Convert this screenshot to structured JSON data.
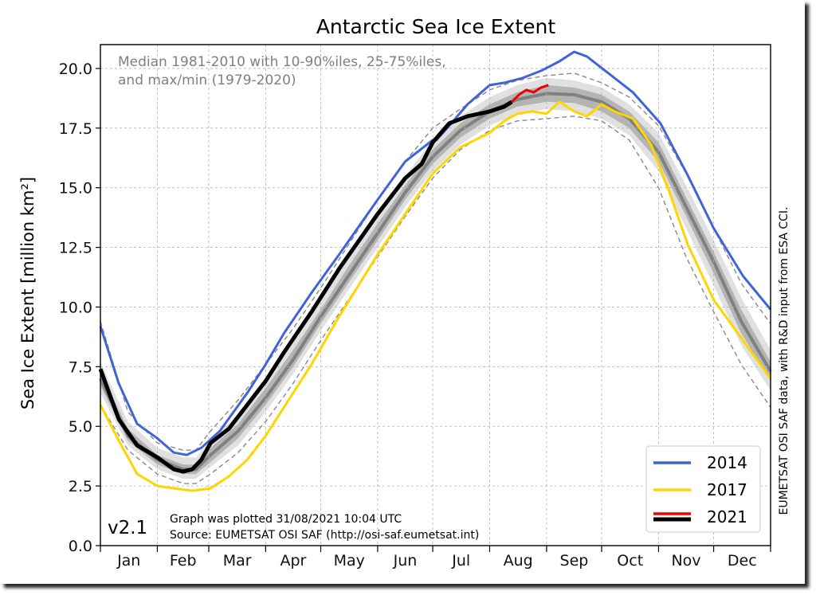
{
  "chart_data": {
    "type": "line",
    "title": "Antarctic Sea Ice Extent",
    "ylabel": "Sea Ice Extent [million km²]",
    "ylim": [
      0,
      21
    ],
    "yticks": [
      "0.0",
      "2.5",
      "5.0",
      "7.5",
      "10.0",
      "12.5",
      "15.0",
      "17.5",
      "20.0"
    ],
    "ytick_values": [
      0,
      2.5,
      5,
      7.5,
      10,
      12.5,
      15,
      17.5,
      20
    ],
    "xlim": [
      0,
      365
    ],
    "xticks": [
      "Jan",
      "Feb",
      "Mar",
      "Apr",
      "May",
      "Jun",
      "Jul",
      "Aug",
      "Sep",
      "Oct",
      "Nov",
      "Dec"
    ],
    "month_start_days": [
      0,
      31,
      59,
      90,
      120,
      151,
      181,
      212,
      243,
      273,
      304,
      334
    ],
    "grid": true,
    "legend_position": "bottom-right",
    "annotation": "Median 1981-2010 with 10-90%iles, 25-75%iles,\nand max/min (1979-2020)",
    "annotation_lines": [
      "Median 1981-2010 with 10-90%iles, 25-75%iles,",
      "and max/min (1979-2020)"
    ],
    "version": "v2.1",
    "footer_lines": [
      "Graph was plotted 31/08/2021 10:04 UTC",
      "Source: EUMETSAT OSI SAF (http://osi-saf.eumetsat.int)"
    ],
    "side_note": "EUMETSAT OSI SAF data, with R&D input from ESA CCI.",
    "climatology": {
      "x": [
        0,
        15,
        31,
        45,
        52,
        60,
        75,
        90,
        105,
        120,
        135,
        151,
        166,
        181,
        196,
        212,
        227,
        243,
        258,
        273,
        288,
        304,
        319,
        334,
        349,
        365
      ],
      "median": [
        7.0,
        4.6,
        3.6,
        3.2,
        3.2,
        3.8,
        4.8,
        6.2,
        7.8,
        9.6,
        11.3,
        13.1,
        14.8,
        16.3,
        17.4,
        18.2,
        18.7,
        18.95,
        18.9,
        18.6,
        17.9,
        16.5,
        14.2,
        11.9,
        9.4,
        7.3
      ],
      "p25": [
        6.7,
        4.4,
        3.4,
        3.0,
        3.0,
        3.5,
        4.5,
        5.9,
        7.5,
        9.3,
        11.0,
        12.8,
        14.5,
        16.0,
        17.1,
        17.9,
        18.4,
        18.6,
        18.55,
        18.2,
        17.5,
        16.1,
        13.8,
        11.4,
        8.9,
        6.9
      ],
      "p75": [
        7.3,
        4.9,
        3.8,
        3.4,
        3.4,
        4.1,
        5.1,
        6.6,
        8.2,
        9.9,
        11.7,
        13.5,
        15.1,
        16.6,
        17.7,
        18.5,
        19.0,
        19.3,
        19.2,
        18.9,
        18.2,
        16.9,
        14.6,
        12.3,
        9.9,
        7.7
      ],
      "p10": [
        6.4,
        4.2,
        3.2,
        2.8,
        2.8,
        3.3,
        4.2,
        5.6,
        7.2,
        9.0,
        10.7,
        12.5,
        14.2,
        15.7,
        16.8,
        17.6,
        18.1,
        18.3,
        18.2,
        17.9,
        17.2,
        15.7,
        13.3,
        10.9,
        8.4,
        6.5
      ],
      "p90": [
        7.7,
        5.2,
        4.1,
        3.7,
        3.7,
        4.4,
        5.5,
        7.0,
        8.6,
        10.3,
        12.1,
        13.9,
        15.5,
        17.0,
        18.0,
        18.8,
        19.3,
        19.6,
        19.5,
        19.2,
        18.5,
        17.3,
        15.1,
        12.8,
        10.4,
        8.2
      ],
      "min": [
        5.9,
        4.0,
        3.0,
        2.6,
        2.6,
        3.0,
        3.9,
        5.2,
        6.8,
        8.6,
        10.3,
        12.1,
        13.8,
        15.4,
        16.6,
        17.4,
        17.8,
        17.9,
        18.0,
        17.8,
        17.0,
        15.0,
        12.1,
        9.8,
        7.6,
        5.8
      ],
      "max": [
        9.4,
        5.6,
        4.3,
        4.0,
        4.0,
        4.8,
        6.1,
        7.6,
        9.1,
        10.8,
        12.6,
        14.5,
        16.1,
        17.5,
        18.3,
        19.1,
        19.5,
        19.7,
        19.8,
        19.4,
        18.8,
        17.6,
        15.6,
        13.3,
        11.0,
        9.3
      ]
    },
    "series": [
      {
        "name": "2014",
        "color": "#4063d8",
        "x": [
          0,
          10,
          20,
          31,
          40,
          47,
          55,
          65,
          80,
          90,
          100,
          115,
          130,
          151,
          166,
          181,
          183,
          190,
          200,
          212,
          220,
          230,
          240,
          250,
          258,
          265,
          275,
          290,
          305,
          320,
          334,
          350,
          365
        ],
        "y": [
          9.2,
          6.8,
          5.1,
          4.5,
          3.9,
          3.8,
          4.1,
          4.8,
          6.4,
          7.6,
          8.9,
          10.6,
          12.2,
          14.5,
          16.1,
          17.0,
          17.0,
          17.6,
          18.5,
          19.3,
          19.4,
          19.6,
          19.9,
          20.3,
          20.7,
          20.5,
          19.9,
          19.0,
          17.7,
          15.5,
          13.3,
          11.3,
          9.9
        ]
      },
      {
        "name": "2017",
        "color": "#ffd500",
        "x": [
          0,
          10,
          20,
          31,
          40,
          50,
          60,
          70,
          80,
          90,
          100,
          115,
          130,
          151,
          166,
          181,
          196,
          212,
          220,
          227,
          235,
          243,
          250,
          258,
          265,
          273,
          280,
          290,
          300,
          310,
          320,
          334,
          350,
          365
        ],
        "y": [
          5.9,
          4.4,
          3.0,
          2.5,
          2.4,
          2.3,
          2.4,
          2.9,
          3.6,
          4.6,
          5.8,
          7.6,
          9.6,
          12.2,
          13.9,
          15.6,
          16.7,
          17.3,
          17.8,
          18.1,
          18.2,
          18.1,
          18.6,
          18.2,
          18.0,
          18.5,
          18.2,
          17.9,
          16.8,
          14.8,
          12.6,
          10.3,
          8.6,
          7.0
        ]
      },
      {
        "name": "2021",
        "color": "#ee0000",
        "x": [
          224,
          228,
          232,
          236,
          240,
          244
        ],
        "y": [
          18.6,
          18.9,
          19.1,
          19.0,
          19.2,
          19.3
        ]
      },
      {
        "name": "2021",
        "color": "#000000",
        "x": [
          0,
          10,
          20,
          31,
          40,
          45,
          50,
          55,
          60,
          70,
          80,
          90,
          100,
          115,
          130,
          151,
          166,
          175,
          181,
          190,
          200,
          212,
          220,
          224
        ],
        "y": [
          7.4,
          5.3,
          4.2,
          3.7,
          3.2,
          3.1,
          3.2,
          3.6,
          4.3,
          4.9,
          5.9,
          6.9,
          8.1,
          9.8,
          11.6,
          13.9,
          15.4,
          16.0,
          16.9,
          17.7,
          18.0,
          18.2,
          18.4,
          18.6
        ]
      }
    ],
    "legend": [
      {
        "label": "2014",
        "color": "#4063d8"
      },
      {
        "label": "2017",
        "color": "#ffd500"
      },
      {
        "label": "2021",
        "color": "#ee0000"
      },
      {
        "label": "2021",
        "color": "#000000"
      }
    ]
  }
}
